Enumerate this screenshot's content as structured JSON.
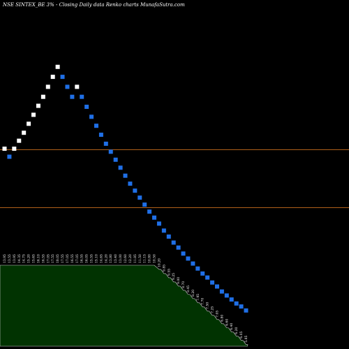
{
  "header": {
    "title": "NSE SINTEX_BE 3% -  Closing Daily data  Renko  charts MunafaSutra.com"
  },
  "chart_data": {
    "type": "renko",
    "box_size_pct": 3,
    "bricks": [
      {
        "dir": "up",
        "value": 13.95
      },
      {
        "dir": "down",
        "value": 13.55
      },
      {
        "dir": "up",
        "value": 13.95
      },
      {
        "dir": "up",
        "value": 14.35
      },
      {
        "dir": "up",
        "value": 14.75
      },
      {
        "dir": "up",
        "value": 15.2
      },
      {
        "dir": "up",
        "value": 15.65
      },
      {
        "dir": "up",
        "value": 16.1
      },
      {
        "dir": "up",
        "value": 16.55
      },
      {
        "dir": "up",
        "value": 17.05
      },
      {
        "dir": "up",
        "value": 17.55
      },
      {
        "dir": "up",
        "value": 18.05
      },
      {
        "dir": "down",
        "value": 17.55
      },
      {
        "dir": "down",
        "value": 17.05
      },
      {
        "dir": "down",
        "value": 16.55
      },
      {
        "dir": "up",
        "value": 17.05
      },
      {
        "dir": "down",
        "value": 16.55
      },
      {
        "dir": "down",
        "value": 16.05
      },
      {
        "dir": "down",
        "value": 15.55
      },
      {
        "dir": "down",
        "value": 15.1
      },
      {
        "dir": "down",
        "value": 14.65
      },
      {
        "dir": "down",
        "value": 14.2
      },
      {
        "dir": "down",
        "value": 13.8
      },
      {
        "dir": "down",
        "value": 13.4
      },
      {
        "dir": "down",
        "value": 13.0
      },
      {
        "dir": "down",
        "value": 12.6
      },
      {
        "dir": "down",
        "value": 12.2
      },
      {
        "dir": "down",
        "value": 11.85
      },
      {
        "dir": "down",
        "value": 11.5
      },
      {
        "dir": "down",
        "value": 11.15
      },
      {
        "dir": "down",
        "value": 10.8
      },
      {
        "dir": "down",
        "value": 10.5
      },
      {
        "dir": "down",
        "value": 10.2
      },
      {
        "dir": "down",
        "value": 9.85
      },
      {
        "dir": "down",
        "value": 9.55
      },
      {
        "dir": "down",
        "value": 9.25
      },
      {
        "dir": "down",
        "value": 9.0
      },
      {
        "dir": "down",
        "value": 8.7
      },
      {
        "dir": "down",
        "value": 8.45
      },
      {
        "dir": "down",
        "value": 8.2
      },
      {
        "dir": "down",
        "value": 7.95
      },
      {
        "dir": "down",
        "value": 7.7
      },
      {
        "dir": "down",
        "value": 7.5
      },
      {
        "dir": "down",
        "value": 7.25
      },
      {
        "dir": "down",
        "value": 7.05
      },
      {
        "dir": "down",
        "value": 6.8
      },
      {
        "dir": "down",
        "value": 6.6
      },
      {
        "dir": "down",
        "value": 6.4
      },
      {
        "dir": "down",
        "value": 6.2
      },
      {
        "dir": "down",
        "value": 6.05
      },
      {
        "dir": "down",
        "value": 5.85
      }
    ],
    "price_labels": [
      "13.95",
      "13.55",
      "13.95",
      "14.35",
      "14.75",
      "15.20",
      "15.65",
      "16.10",
      "16.55",
      "17.05",
      "17.55",
      "18.05",
      "17.55",
      "17.05",
      "16.55",
      "17.05",
      "16.55",
      "16.05",
      "15.55",
      "15.10",
      "14.65",
      "14.20",
      "13.80",
      "13.40",
      "13.00",
      "12.60",
      "12.20",
      "11.85",
      "11.50",
      "11.15",
      "10.80",
      "10.50",
      "10.20",
      "9.85",
      "9.55",
      "9.25",
      "9.00",
      "8.70",
      "8.45",
      "8.20",
      "7.95",
      "7.70",
      "7.50",
      "7.25",
      "7.05",
      "6.80",
      "6.60",
      "6.40",
      "6.20",
      "6.05",
      "5.85"
    ],
    "reference_lines": [
      13.9,
      11.0
    ],
    "ylim": [
      4.2,
      20.0
    ],
    "colors": {
      "background": "#000000",
      "up_brick": "#ffffff",
      "down_brick": "#1f6fe6",
      "reference_line": "#b0601a",
      "volume_fill": "#013301",
      "volume_edge": "#cfcfcf"
    }
  }
}
